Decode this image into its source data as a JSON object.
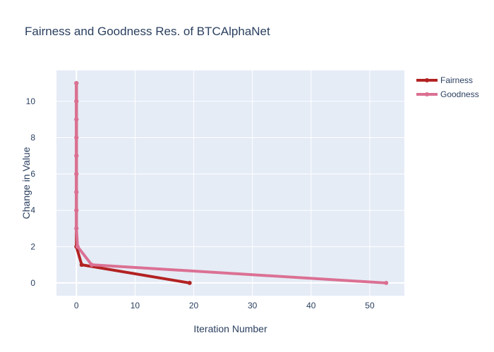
{
  "chart_data": {
    "type": "line",
    "title": "Fairness and Goodness Res. of BTCAlphaNet",
    "xlabel": "Iteration Number",
    "ylabel": "Change in Value",
    "xlim": [
      -3.4,
      55.9
    ],
    "ylim": [
      -0.7,
      11.7
    ],
    "x_ticks": [
      0,
      10,
      20,
      30,
      40,
      50
    ],
    "y_ticks": [
      0,
      2,
      4,
      6,
      8,
      10
    ],
    "grid": true,
    "legend_position": "top-right",
    "series": [
      {
        "name": "Fairness",
        "color": "#b22222",
        "x": [
          0,
          0,
          0,
          0,
          0,
          0,
          0,
          0,
          0,
          0,
          0.9,
          19.3
        ],
        "y": [
          11,
          10,
          9,
          8,
          7,
          6,
          5,
          4,
          3,
          2,
          1,
          0
        ]
      },
      {
        "name": "Goodness",
        "color": "#db7093",
        "x": [
          0,
          0,
          0,
          0,
          0,
          0,
          0,
          0,
          0,
          0.2,
          2.6,
          52.8
        ],
        "y": [
          11,
          10,
          9,
          8,
          7,
          6,
          5,
          4,
          3,
          2,
          1,
          0
        ]
      }
    ],
    "plot_bg": "#e5ecf6",
    "grid_color": "#ffffff",
    "text_color": "#2a3f5f"
  }
}
